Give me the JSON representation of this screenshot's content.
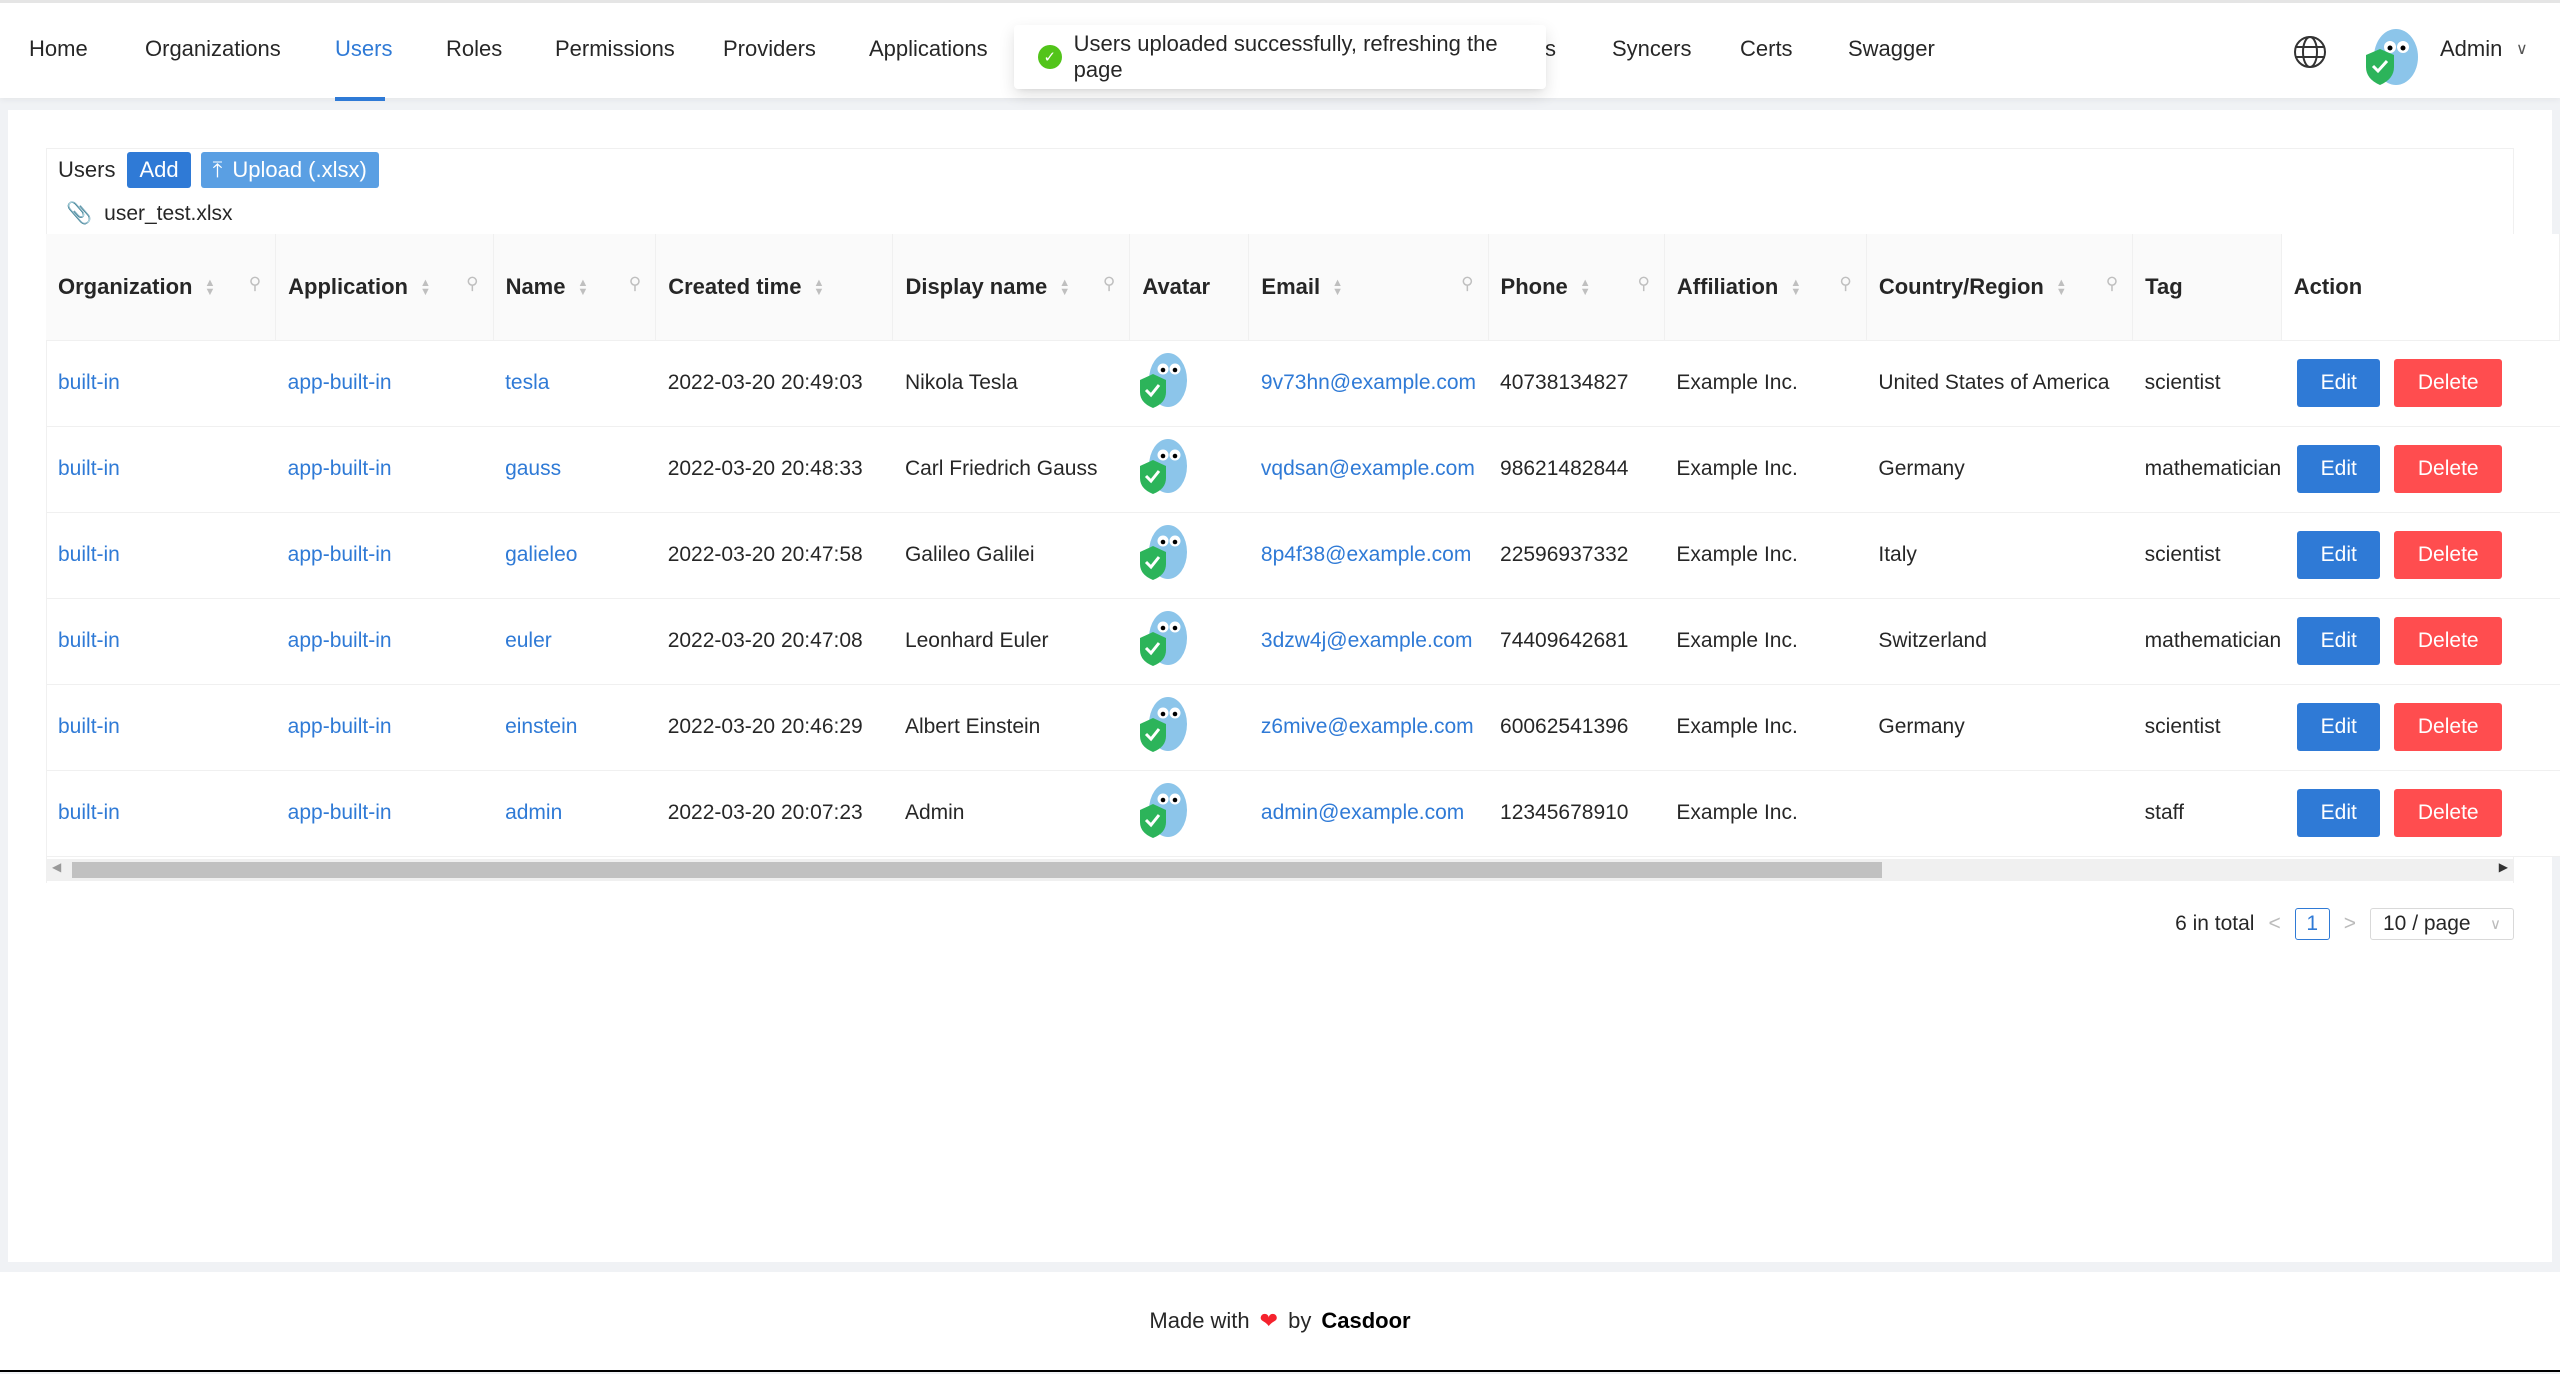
{
  "nav": {
    "items": [
      "Home",
      "Organizations",
      "Users",
      "Roles",
      "Permissions",
      "Providers",
      "Applications",
      "s",
      "Syncers",
      "Certs",
      "Swagger"
    ],
    "active": "Users",
    "user": "Admin"
  },
  "toast": {
    "message": "Users uploaded successfully, refreshing the page",
    "status": "success",
    "color": "#52c41a"
  },
  "toolbar": {
    "title": "Users",
    "add_label": "Add",
    "upload_label": "Upload (.xlsx)",
    "file_name": "user_test.xlsx"
  },
  "table": {
    "columns": [
      "Organization",
      "Application",
      "Name",
      "Created time",
      "Display name",
      "Avatar",
      "Email",
      "Phone",
      "Affiliation",
      "Country/Region",
      "Tag",
      "Action"
    ],
    "rows": [
      {
        "organization": "built-in",
        "application": "app-built-in",
        "name": "tesla",
        "created": "2022-03-20 20:49:03",
        "display": "Nikola Tesla",
        "email": "9v73hn@example.com",
        "phone": "40738134827",
        "affiliation": "Example Inc.",
        "country": "United States of America",
        "tag": "scientist"
      },
      {
        "organization": "built-in",
        "application": "app-built-in",
        "name": "gauss",
        "created": "2022-03-20 20:48:33",
        "display": "Carl Friedrich Gauss",
        "email": "vqdsan@example.com",
        "phone": "98621482844",
        "affiliation": "Example Inc.",
        "country": "Germany",
        "tag": "mathematician"
      },
      {
        "organization": "built-in",
        "application": "app-built-in",
        "name": "galieleo",
        "created": "2022-03-20 20:47:58",
        "display": "Galileo Galilei",
        "email": "8p4f38@example.com",
        "phone": "22596937332",
        "affiliation": "Example Inc.",
        "country": "Italy",
        "tag": "scientist"
      },
      {
        "organization": "built-in",
        "application": "app-built-in",
        "name": "euler",
        "created": "2022-03-20 20:47:08",
        "display": "Leonhard Euler",
        "email": "3dzw4j@example.com",
        "phone": "74409642681",
        "affiliation": "Example Inc.",
        "country": "Switzerland",
        "tag": "mathematician"
      },
      {
        "organization": "built-in",
        "application": "app-built-in",
        "name": "einstein",
        "created": "2022-03-20 20:46:29",
        "display": "Albert Einstein",
        "email": "z6mive@example.com",
        "phone": "60062541396",
        "affiliation": "Example Inc.",
        "country": "Germany",
        "tag": "scientist"
      },
      {
        "organization": "built-in",
        "application": "app-built-in",
        "name": "admin",
        "created": "2022-03-20 20:07:23",
        "display": "Admin",
        "email": "admin@example.com",
        "phone": "12345678910",
        "affiliation": "Example Inc.",
        "country": "",
        "tag": "staff"
      }
    ],
    "edit_label": "Edit",
    "delete_label": "Delete",
    "edit_color": "#2f7ad6",
    "delete_color": "#ff4d4f"
  },
  "pagination": {
    "total_text": "6 in total",
    "current_page": "1",
    "page_size": "10 / page"
  },
  "footer": {
    "made_with": "Made with",
    "by": "by",
    "brand": "Casdoor"
  }
}
